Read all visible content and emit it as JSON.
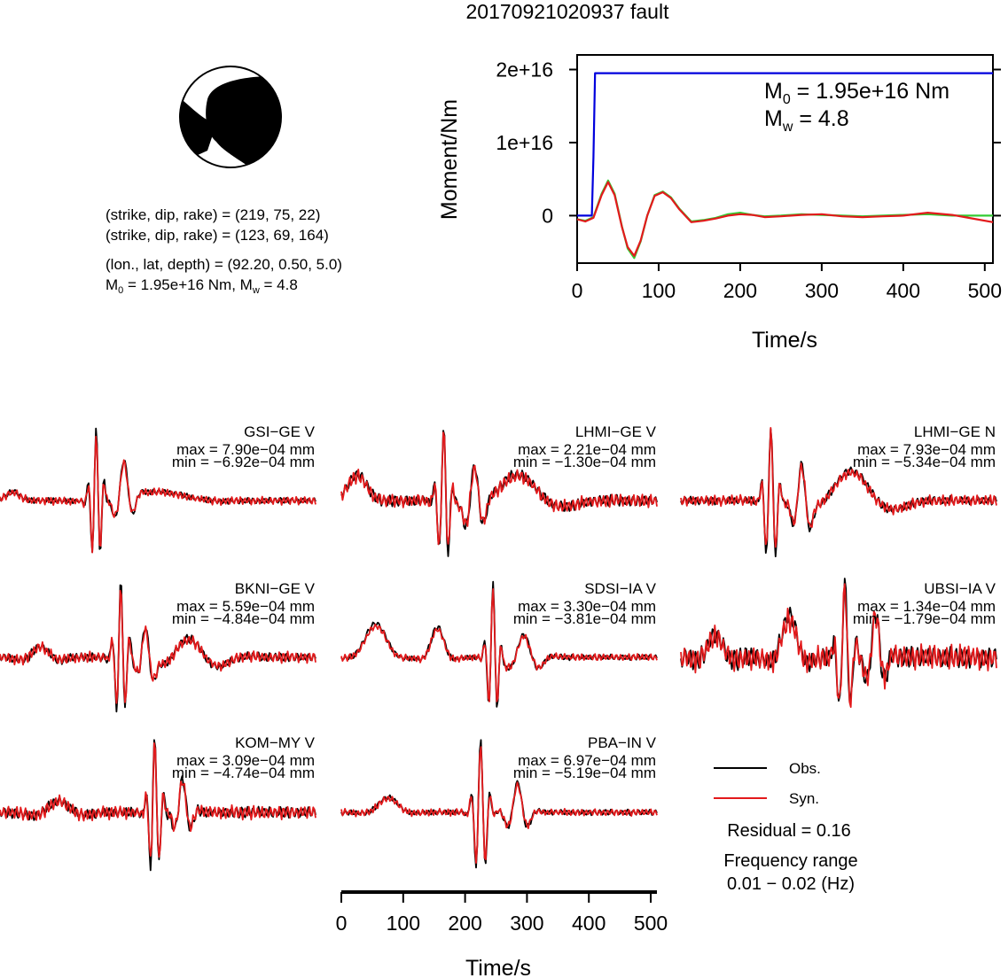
{
  "title": "20170921020937 fault",
  "mechanism": {
    "line1": "(strike, dip, rake) = (219, 75, 22)",
    "line2": "(strike, dip, rake) = (123, 69, 164)",
    "line3": "(lon., lat, depth) = (92.20, 0.50, 5.0)",
    "line4_m0_prefix": "M",
    "line4_m0_sub": "0",
    "line4_m0_value": " = 1.95e+16 Nm, M",
    "line4_mw_sub": "w",
    "line4_mw_value": " = 4.8"
  },
  "moment_panel": {
    "m0_prefix": "M",
    "m0_sub": "0",
    "m0_value": " = 1.95e+16 Nm",
    "mw_prefix": "M",
    "mw_sub": "w",
    "mw_value": " = 4.8"
  },
  "colors": {
    "observed": "#000000",
    "synthetic": "#e31a1c",
    "cumulative_moment": "#0000dd",
    "moment_rate_alt": "#33cc33",
    "beachball_fill": "#000000"
  },
  "chart_data": [
    {
      "type": "line",
      "title": "",
      "xlabel": "Time/s",
      "ylabel": "Moment/Nm",
      "xlim": [
        0,
        510
      ],
      "ylim": [
        -6500000000000000.0,
        2.2e+16
      ],
      "xticks": [
        0,
        100,
        200,
        300,
        400,
        500
      ],
      "xtick_labels": [
        "0",
        "100",
        "200",
        "300",
        "400",
        "500"
      ],
      "yticks": [
        0,
        1e+16,
        2e+16
      ],
      "ytick_labels": [
        "0",
        "1e+16",
        "2e+16"
      ],
      "series": [
        {
          "color": "#0000dd",
          "x": [
            0,
            18,
            20,
            22,
            510
          ],
          "y": [
            0,
            0,
            8000000000000000.0,
            1.95e+16,
            1.95e+16
          ]
        },
        {
          "color": "#33cc33",
          "x": [
            0,
            10,
            20,
            30,
            38,
            46,
            55,
            62,
            70,
            78,
            86,
            95,
            105,
            115,
            125,
            140,
            155,
            170,
            185,
            200,
            215,
            230,
            250,
            275,
            300,
            325,
            350,
            375,
            400,
            430,
            460,
            490,
            510
          ],
          "y": [
            -500000000000000.0,
            -700000000000000.0,
            -200000000000000.0,
            3000000000000000.0,
            4800000000000000.0,
            3000000000000000.0,
            -1500000000000000.0,
            -4500000000000000.0,
            -5800000000000000.0,
            -3500000000000000.0,
            0,
            2800000000000000.0,
            3300000000000000.0,
            2500000000000000.0,
            1000000000000000.0,
            -800000000000000.0,
            -600000000000000.0,
            -300000000000000.0,
            200000000000000.0,
            400000000000000.0,
            100000000000000.0,
            -100000000000000.0,
            0,
            200000000000000.0,
            100000000000000.0,
            0,
            -100000000000000.0,
            0,
            100000000000000.0,
            200000000000000.0,
            0,
            0,
            0
          ]
        },
        {
          "color": "#e31a1c",
          "x": [
            0,
            10,
            20,
            30,
            38,
            46,
            55,
            62,
            70,
            78,
            86,
            95,
            105,
            115,
            125,
            140,
            155,
            170,
            185,
            200,
            215,
            230,
            250,
            275,
            300,
            325,
            350,
            375,
            400,
            430,
            460,
            490,
            510
          ],
          "y": [
            -500000000000000.0,
            -800000000000000.0,
            -300000000000000.0,
            2800000000000000.0,
            4600000000000000.0,
            2800000000000000.0,
            -1600000000000000.0,
            -4300000000000000.0,
            -5500000000000000.0,
            -3400000000000000.0,
            0,
            2700000000000000.0,
            3200000000000000.0,
            2400000000000000.0,
            900000000000000.0,
            -900000000000000.0,
            -700000000000000.0,
            -400000000000000.0,
            0,
            200000000000000.0,
            100000000000000.0,
            -200000000000000.0,
            -100000000000000.0,
            100000000000000.0,
            200000000000000.0,
            -100000000000000.0,
            -200000000000000.0,
            -100000000000000.0,
            0,
            400000000000000.0,
            100000000000000.0,
            -500000000000000.0,
            -900000000000000.0
          ]
        }
      ]
    },
    {
      "type": "line",
      "title": "",
      "xlabel": "Time/s",
      "xlim": [
        0,
        510
      ],
      "xticks": [
        0,
        100,
        200,
        300,
        400,
        500
      ],
      "xtick_labels": [
        "0",
        "100",
        "200",
        "300",
        "400",
        "500"
      ],
      "legend": [
        {
          "name": "Obs.",
          "color": "#000000"
        },
        {
          "name": "Syn.",
          "color": "#e31a1c"
        }
      ],
      "residual": "Residual = 0.16",
      "frequency_range_label": "Frequency range",
      "frequency_range_value": "0.01 − 0.02 (Hz)",
      "stations": [
        {
          "name": "GSI−GE V",
          "max": "max = 7.90e−04 mm",
          "min": "min = −6.92e−04 mm",
          "events": [
            {
              "t": -235,
              "a": 0.12,
              "w": 20,
              "f": 0.2
            },
            {
              "t": -100,
              "a": 1.0,
              "w": 11,
              "f": 0.9
            },
            {
              "t": -55,
              "a": 0.5,
              "w": 18,
              "f": 0.6
            },
            {
              "t": 0,
              "a": 0.12,
              "w": 80,
              "f": 0.25
            }
          ],
          "noise_amp": 0.04,
          "noise_syn_amp": 0.06
        },
        {
          "name": "LHMI−GE V",
          "max": "max = 2.21e−04 mm",
          "min": "min = −1.30e−04 mm",
          "events": [
            {
              "t": -230,
              "a": 0.35,
              "w": 25,
              "f": 0.15
            },
            {
              "t": -90,
              "a": 1.0,
              "w": 12,
              "f": 0.85
            },
            {
              "t": -40,
              "a": 0.55,
              "w": 18,
              "f": 0.6
            },
            {
              "t": 30,
              "a": 0.35,
              "w": 70,
              "f": 0.4
            }
          ],
          "noise_amp": 0.08,
          "noise_syn_amp": 0.1
        },
        {
          "name": "LHMI−GE N",
          "max": "max = 7.93e−04 mm",
          "min": "min = −5.34e−04 mm",
          "events": [
            {
              "t": -110,
              "a": 1.0,
              "w": 13,
              "f": 0.9
            },
            {
              "t": -60,
              "a": 0.6,
              "w": 16,
              "f": 0.55
            },
            {
              "t": 20,
              "a": 0.4,
              "w": 70,
              "f": 0.45
            }
          ],
          "noise_amp": 0.06,
          "noise_syn_amp": 0.08
        },
        {
          "name": "BKNI−GE V",
          "max": "max = 5.59e−04 mm",
          "min": "min = −4.84e−04 mm",
          "events": [
            {
              "t": -190,
              "a": 0.15,
              "w": 30,
              "f": 0.4
            },
            {
              "t": -60,
              "a": 1.0,
              "w": 12,
              "f": 0.9
            },
            {
              "t": -20,
              "a": 0.45,
              "w": 16,
              "f": 0.6
            },
            {
              "t": 50,
              "a": 0.25,
              "w": 60,
              "f": 0.6
            }
          ],
          "noise_amp": 0.06,
          "noise_syn_amp": 0.08
        },
        {
          "name": "SDSI−IA V",
          "max": "max = 3.30e−04 mm",
          "min": "min = −3.81e−04 mm",
          "events": [
            {
              "t": -200,
              "a": 0.45,
              "w": 30,
              "f": 0.2
            },
            {
              "t": -100,
              "a": 0.4,
              "w": 20,
              "f": 0.25
            },
            {
              "t": -10,
              "a": 1.0,
              "w": 11,
              "f": 0.85
            },
            {
              "t": 40,
              "a": 0.3,
              "w": 30,
              "f": 0.6
            }
          ],
          "noise_amp": 0.04,
          "noise_syn_amp": 0.05
        },
        {
          "name": "UBSI−IA V",
          "max": "max = 1.34e−04 mm",
          "min": "min = −1.79e−04 mm",
          "events": [
            {
              "t": -200,
              "a": 0.3,
              "w": 25,
              "f": 0.3
            },
            {
              "t": -80,
              "a": 0.55,
              "w": 25,
              "f": 0.3
            },
            {
              "t": 10,
              "a": 1.0,
              "w": 14,
              "f": 0.8
            },
            {
              "t": 60,
              "a": 0.6,
              "w": 18,
              "f": 0.6
            }
          ],
          "noise_amp": 0.15,
          "noise_syn_amp": 0.18
        },
        {
          "name": "KOM−MY V",
          "max": "max = 3.09e−04 mm",
          "min": "min = −4.74e−04 mm",
          "events": [
            {
              "t": -160,
              "a": 0.15,
              "w": 40,
              "f": 0.4
            },
            {
              "t": -5,
              "a": 1.0,
              "w": 12,
              "f": 0.9
            },
            {
              "t": 40,
              "a": 0.45,
              "w": 16,
              "f": 0.6
            }
          ],
          "noise_amp": 0.08,
          "noise_syn_amp": 0.1
        },
        {
          "name": "PBA−IN V",
          "max": "max = 6.97e−04 mm",
          "min": "min = −5.19e−04 mm",
          "events": [
            {
              "t": -180,
              "a": 0.2,
              "w": 30,
              "f": 0.25
            },
            {
              "t": -30,
              "a": 1.0,
              "w": 13,
              "f": 0.9
            },
            {
              "t": 30,
              "a": 0.4,
              "w": 20,
              "f": 0.6
            }
          ],
          "noise_amp": 0.04,
          "noise_syn_amp": 0.05
        }
      ]
    }
  ]
}
